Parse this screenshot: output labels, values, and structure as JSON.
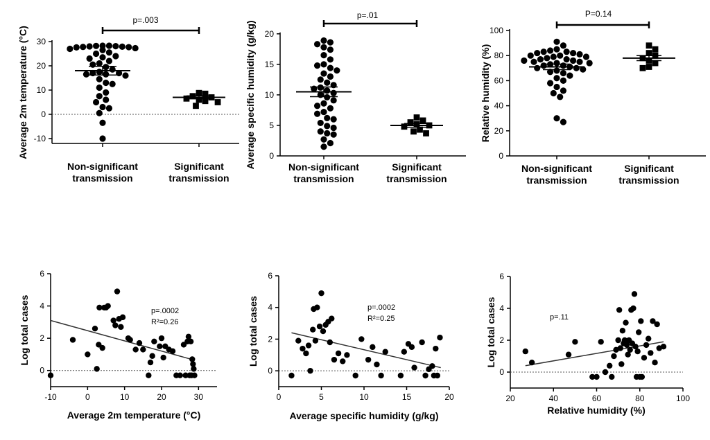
{
  "chart_data": [
    {
      "type": "scatter",
      "ylabel": "Average 2m temperature (°C)",
      "categories": [
        "Non-significant transmission",
        "Significant transmission"
      ],
      "ylim": [
        -12,
        34
      ],
      "yticks": [
        -10,
        0,
        10,
        20,
        30
      ],
      "reference_line": 0,
      "annotation": "p=.003",
      "groups": [
        {
          "category": "Non-significant transmission",
          "marker": "circle",
          "mean": 18,
          "sem": 1.8,
          "values": [
            28.3,
            28.3,
            28.2,
            28.1,
            28.0,
            27.9,
            27.8,
            27.7,
            27.6,
            27.3,
            27.0,
            26.5,
            25.5,
            25.0,
            24.0,
            23.5,
            23.0,
            22.0,
            21.0,
            20.5,
            19.5,
            18.5,
            17.5,
            17.0,
            17.0,
            16.5,
            16.5,
            16.0,
            14.5,
            13.0,
            12.5,
            11.0,
            9.0,
            7.5,
            6.0,
            5.0,
            3.0,
            2.5,
            0.5,
            -3.5,
            -10.0
          ]
        },
        {
          "category": "Significant transmission",
          "marker": "square",
          "mean": 7,
          "sem": 0.6,
          "values": [
            8.8,
            8.5,
            7.5,
            7.0,
            6.5,
            6.0,
            5.5,
            5.0,
            3.5
          ]
        }
      ]
    },
    {
      "type": "scatter",
      "ylabel": "Average specific humidity (g/kg)",
      "categories": [
        "Non-significant transmission",
        "Significant transmission"
      ],
      "ylim": [
        0,
        21
      ],
      "yticks": [
        0,
        5,
        10,
        15,
        20
      ],
      "annotation": "p=.01",
      "groups": [
        {
          "category": "Non-significant transmission",
          "marker": "circle",
          "mean": 10.5,
          "sem": 0.8,
          "values": [
            18.9,
            18.6,
            18.3,
            17.8,
            17.4,
            16.5,
            15.8,
            15.0,
            14.8,
            14.4,
            14.0,
            13.5,
            13.0,
            12.5,
            12.0,
            11.6,
            11.2,
            11.0,
            10.7,
            10.3,
            10.0,
            9.6,
            9.1,
            8.6,
            8.2,
            7.8,
            7.2,
            6.9,
            6.2,
            6.0,
            5.4,
            4.9,
            4.6,
            4.0,
            3.7,
            3.5,
            2.7,
            2.1,
            1.5
          ]
        },
        {
          "category": "Significant transmission",
          "marker": "square",
          "mean": 5,
          "sem": 0.3,
          "values": [
            6.3,
            5.8,
            5.5,
            5.2,
            5.0,
            4.8,
            4.3,
            4.0,
            3.7
          ]
        }
      ]
    },
    {
      "type": "scatter",
      "ylabel": "Relative humidity (%)",
      "categories": [
        "Non-significant transmission",
        "Significant transmission"
      ],
      "ylim": [
        0,
        100
      ],
      "yticks": [
        0,
        20,
        40,
        60,
        80,
        100
      ],
      "annotation": "P=0.14",
      "groups": [
        {
          "category": "Non-significant transmission",
          "marker": "circle",
          "mean": 71,
          "sem": 2.2,
          "values": [
            91,
            88,
            85,
            84,
            83,
            83,
            82,
            82,
            81,
            80,
            80,
            79,
            79,
            78,
            77,
            77,
            76,
            76,
            75,
            75,
            74,
            74,
            73,
            72,
            72,
            71,
            70,
            70,
            69,
            68,
            67,
            66,
            64,
            62,
            60,
            58,
            55,
            52,
            50,
            47,
            30,
            27
          ]
        },
        {
          "category": "Significant transmission",
          "marker": "square",
          "mean": 78,
          "sem": 2.0,
          "values": [
            88,
            85,
            82,
            80,
            78,
            76,
            74,
            71,
            70
          ]
        }
      ]
    },
    {
      "type": "scatter",
      "xlabel": "Average 2m temperature (°C)",
      "ylabel": "Log total cases",
      "xlim": [
        -10,
        35
      ],
      "xticks": [
        -10,
        0,
        10,
        20,
        30
      ],
      "ylim": [
        -1,
        6
      ],
      "yticks": [
        0,
        2,
        4,
        6
      ],
      "reference_line": 0,
      "annotation": [
        "p=.0002",
        "R²=0.26"
      ],
      "regression": {
        "x": [
          -10,
          28
        ],
        "y": [
          3.1,
          0.7
        ]
      },
      "points": [
        [
          -10.0,
          -0.3
        ],
        [
          -4.0,
          1.9
        ],
        [
          0.0,
          1.0
        ],
        [
          2.0,
          2.6
        ],
        [
          2.5,
          0.1
        ],
        [
          3.0,
          1.6
        ],
        [
          3.2,
          3.9
        ],
        [
          4.0,
          1.4
        ],
        [
          4.5,
          3.9
        ],
        [
          5.0,
          3.9
        ],
        [
          5.5,
          4.0
        ],
        [
          7.0,
          3.1
        ],
        [
          7.5,
          2.8
        ],
        [
          8.0,
          4.9
        ],
        [
          8.5,
          3.2
        ],
        [
          9.0,
          2.7
        ],
        [
          9.5,
          3.3
        ],
        [
          11.0,
          2.0
        ],
        [
          11.5,
          1.9
        ],
        [
          13.0,
          1.3
        ],
        [
          14.0,
          1.7
        ],
        [
          15.0,
          1.3
        ],
        [
          16.5,
          -0.3
        ],
        [
          17.0,
          0.5
        ],
        [
          17.5,
          0.9
        ],
        [
          18.0,
          1.8
        ],
        [
          19.5,
          1.5
        ],
        [
          20.0,
          2.0
        ],
        [
          20.5,
          0.8
        ],
        [
          21.0,
          1.5
        ],
        [
          22.0,
          1.3
        ],
        [
          23.0,
          1.2
        ],
        [
          24.0,
          -0.3
        ],
        [
          25.0,
          -0.3
        ],
        [
          26.0,
          1.6
        ],
        [
          26.5,
          -0.3
        ],
        [
          27.0,
          1.8
        ],
        [
          27.3,
          2.1
        ],
        [
          27.6,
          -0.3
        ],
        [
          27.9,
          1.8
        ],
        [
          28.1,
          -0.3
        ],
        [
          28.3,
          0.7
        ],
        [
          28.5,
          0.4
        ],
        [
          28.7,
          0.1
        ],
        [
          28.9,
          -0.3
        ]
      ]
    },
    {
      "type": "scatter",
      "xlabel": "Average specific humidity (g/kg)",
      "ylabel": "Log total cases",
      "xlim": [
        0,
        20
      ],
      "xticks": [
        0,
        5,
        10,
        15,
        20
      ],
      "ylim": [
        -1,
        6
      ],
      "yticks": [
        0,
        2,
        4,
        6
      ],
      "reference_line": 0,
      "annotation": [
        "p=.0002",
        "R²=0.25"
      ],
      "regression": {
        "x": [
          1.5,
          19
        ],
        "y": [
          2.4,
          0.2
        ]
      },
      "points": [
        [
          1.5,
          -0.3
        ],
        [
          2.3,
          1.9
        ],
        [
          2.8,
          1.4
        ],
        [
          3.2,
          1.1
        ],
        [
          3.5,
          1.6
        ],
        [
          3.7,
          0.0
        ],
        [
          4.0,
          2.6
        ],
        [
          4.1,
          3.9
        ],
        [
          4.3,
          1.9
        ],
        [
          4.5,
          4.0
        ],
        [
          4.8,
          2.8
        ],
        [
          5.0,
          4.9
        ],
        [
          5.2,
          2.5
        ],
        [
          5.5,
          2.9
        ],
        [
          5.8,
          3.1
        ],
        [
          6.0,
          1.8
        ],
        [
          6.2,
          3.3
        ],
        [
          6.5,
          0.7
        ],
        [
          7.0,
          1.1
        ],
        [
          7.5,
          0.6
        ],
        [
          8.0,
          1.0
        ],
        [
          9.0,
          -0.3
        ],
        [
          9.7,
          2.0
        ],
        [
          10.5,
          0.7
        ],
        [
          11.0,
          1.5
        ],
        [
          11.5,
          0.4
        ],
        [
          12.0,
          -0.3
        ],
        [
          12.5,
          1.2
        ],
        [
          14.3,
          -0.3
        ],
        [
          14.7,
          1.2
        ],
        [
          15.2,
          1.7
        ],
        [
          15.6,
          1.5
        ],
        [
          15.9,
          0.2
        ],
        [
          16.8,
          1.8
        ],
        [
          17.2,
          -0.3
        ],
        [
          17.6,
          0.1
        ],
        [
          18.0,
          0.3
        ],
        [
          18.2,
          -0.3
        ],
        [
          18.4,
          1.4
        ],
        [
          18.6,
          -0.3
        ],
        [
          18.9,
          2.1
        ]
      ]
    },
    {
      "type": "scatter",
      "xlabel": "Relative humidity (%)",
      "ylabel": "Log total cases",
      "xlim": [
        20,
        100
      ],
      "xticks": [
        20,
        40,
        60,
        80,
        100
      ],
      "ylim": [
        -1,
        6
      ],
      "yticks": [
        0,
        2,
        4,
        6
      ],
      "reference_line": 0,
      "annotation": "p=.11",
      "regression": {
        "x": [
          27,
          91
        ],
        "y": [
          0.4,
          1.9
        ]
      },
      "points": [
        [
          27,
          1.3
        ],
        [
          30,
          0.6
        ],
        [
          47,
          1.1
        ],
        [
          50,
          1.9
        ],
        [
          58,
          -0.3
        ],
        [
          60,
          -0.3
        ],
        [
          62,
          1.9
        ],
        [
          64,
          0.0
        ],
        [
          66,
          0.4
        ],
        [
          67,
          -0.3
        ],
        [
          68,
          1.0
        ],
        [
          69,
          1.4
        ],
        [
          70,
          2.0
        ],
        [
          70.5,
          3.9
        ],
        [
          71,
          1.5
        ],
        [
          71.5,
          0.5
        ],
        [
          72,
          2.6
        ],
        [
          72.5,
          1.8
        ],
        [
          73,
          2.0
        ],
        [
          73.5,
          3.1
        ],
        [
          74,
          1.7
        ],
        [
          74.5,
          1.1
        ],
        [
          75,
          2.0
        ],
        [
          75.5,
          1.4
        ],
        [
          76,
          3.9
        ],
        [
          76.5,
          1.8
        ],
        [
          77,
          4.0
        ],
        [
          77.5,
          4.9
        ],
        [
          78,
          1.6
        ],
        [
          78.5,
          -0.3
        ],
        [
          79,
          1.3
        ],
        [
          79.5,
          2.5
        ],
        [
          80,
          -0.3
        ],
        [
          80.5,
          3.2
        ],
        [
          81,
          -0.3
        ],
        [
          82,
          0.9
        ],
        [
          83,
          1.7
        ],
        [
          84,
          2.1
        ],
        [
          85,
          1.2
        ],
        [
          86,
          3.2
        ],
        [
          87,
          0.6
        ],
        [
          88,
          3.0
        ],
        [
          89,
          1.5
        ],
        [
          91,
          1.6
        ]
      ]
    }
  ]
}
